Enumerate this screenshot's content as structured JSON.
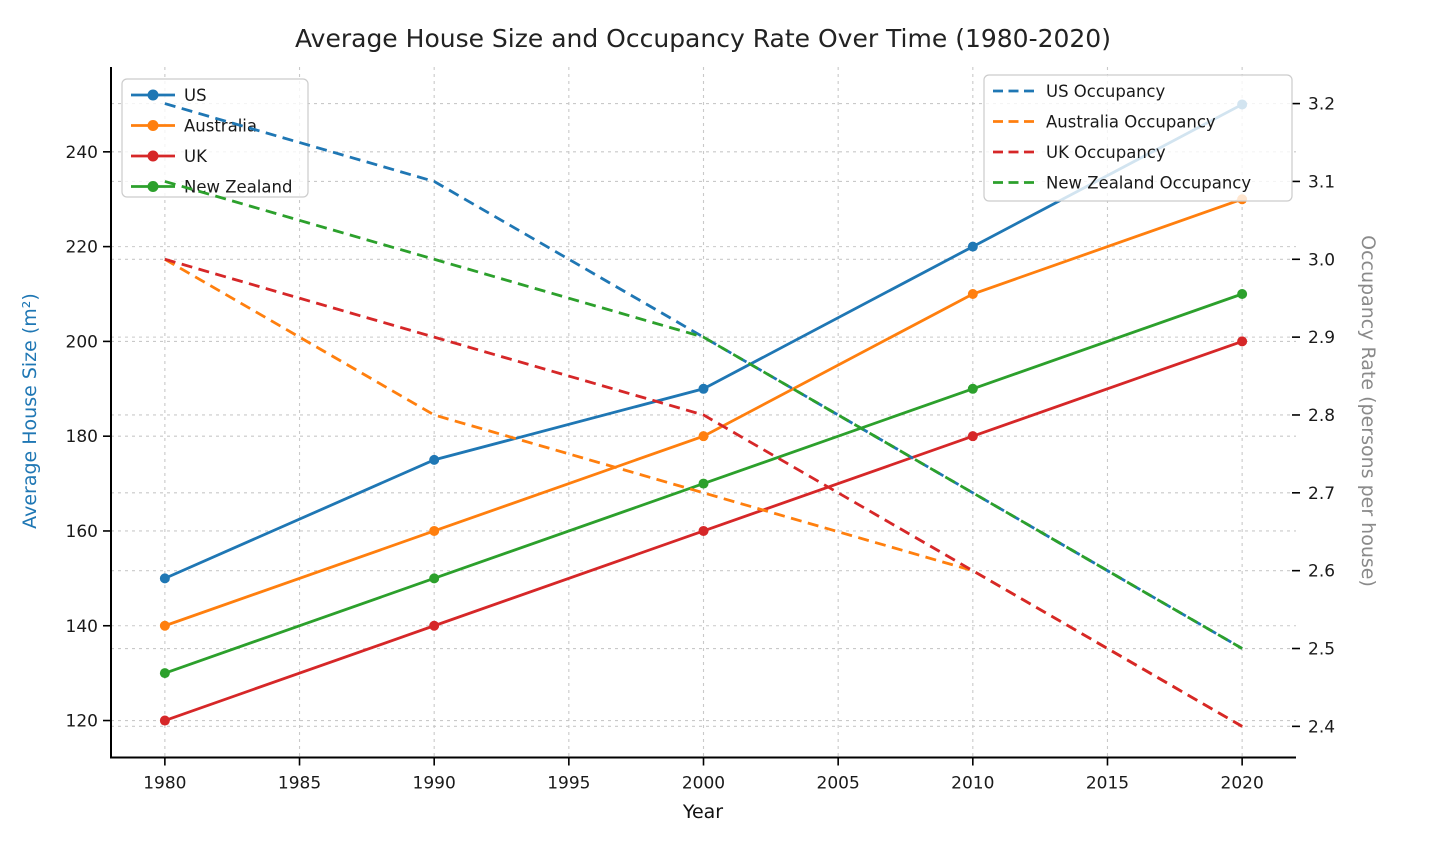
{
  "figure": {
    "title": "Average House Size and Occupancy Rate Over Time (1980-2020)",
    "xlabel": "Year",
    "ylabel_left": "Average House Size (m²)",
    "ylabel_right": "Occupancy Rate (persons per house)"
  },
  "colors": {
    "blue": "#1f77b4",
    "orange": "#ff7f0e",
    "red": "#d62728",
    "green": "#2ca02c",
    "grid": "#c9c9c9",
    "spine": "#000000",
    "tick_label": "#1a1a1a",
    "title_text": "#222222",
    "right_label_gray": "#8a8a8a",
    "legend_border": "#cccccc",
    "legend_bg_alpha": "rgba(255,255,255,0.8)"
  },
  "chart_data": {
    "type": "line",
    "title": "Average House Size and Occupancy Rate Over Time (1980-2020)",
    "xlabel": "Year",
    "ylabel_left": "Average House Size (m²)",
    "ylabel_right": "Occupancy Rate (persons per house)",
    "x": [
      1980,
      1990,
      2000,
      2010,
      2020
    ],
    "x_ticks": [
      1980,
      1985,
      1990,
      1995,
      2000,
      2005,
      2010,
      2015,
      2020
    ],
    "y_left_ticks": [
      120,
      140,
      160,
      180,
      200,
      220,
      240
    ],
    "y_right_ticks": [
      2.4,
      2.5,
      2.6,
      2.7,
      2.8,
      2.9,
      3.0,
      3.1,
      3.2
    ],
    "xlim": [
      1978,
      2022
    ],
    "ylim_left": [
      112.2,
      257.9
    ],
    "ylim_right": [
      2.36,
      3.247
    ],
    "grid": true,
    "legend_left_position": "upper left",
    "legend_right_position": "upper right",
    "house_series": [
      {
        "name": "US",
        "color": "#1f77b4",
        "values": [
          150,
          175,
          190,
          220,
          250
        ]
      },
      {
        "name": "Australia",
        "color": "#ff7f0e",
        "values": [
          140,
          160,
          180,
          210,
          230
        ]
      },
      {
        "name": "UK",
        "color": "#d62728",
        "values": [
          120,
          140,
          160,
          180,
          200
        ]
      },
      {
        "name": "New Zealand",
        "color": "#2ca02c",
        "values": [
          130,
          150,
          170,
          190,
          210
        ]
      }
    ],
    "occupancy_series": [
      {
        "name": "US Occupancy",
        "color": "#1f77b4",
        "values": [
          3.2,
          3.1,
          2.9,
          2.7,
          2.5
        ]
      },
      {
        "name": "Australia Occupancy",
        "color": "#ff7f0e",
        "values": [
          3.0,
          2.8,
          2.7,
          2.6,
          2.4
        ]
      },
      {
        "name": "UK Occupancy",
        "color": "#d62728",
        "values": [
          3.0,
          2.9,
          2.8,
          2.6,
          2.4
        ]
      },
      {
        "name": "New Zealand Occupancy",
        "color": "#2ca02c",
        "values": [
          3.1,
          3.0,
          2.9,
          2.7,
          2.5
        ]
      }
    ]
  }
}
